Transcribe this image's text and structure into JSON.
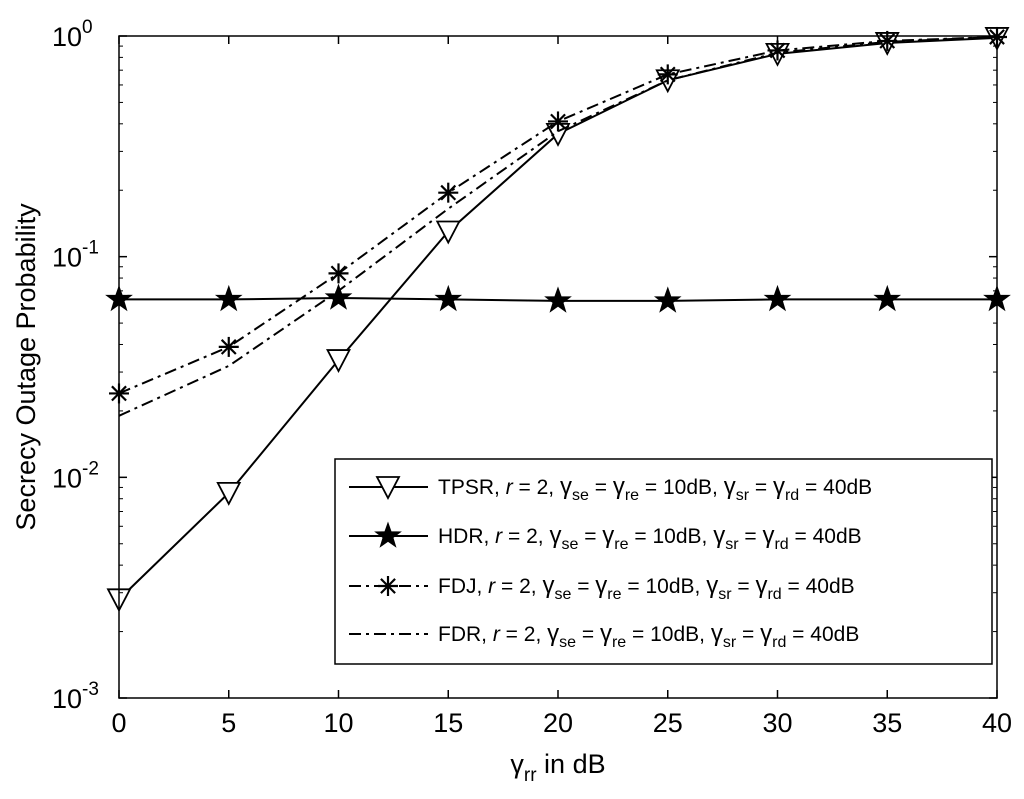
{
  "chart_data": {
    "type": "line",
    "xlabel": {
      "base": "γ",
      "sub": "rr",
      "rest": " in dB"
    },
    "ylabel": "Secrecy Outage Probability",
    "x": [
      0,
      5,
      10,
      15,
      20,
      25,
      30,
      35,
      40
    ],
    "xlim": [
      0,
      40
    ],
    "ylim": [
      0.001,
      1
    ],
    "yscale": "log",
    "xticks": [
      "0",
      "5",
      "10",
      "15",
      "20",
      "25",
      "30",
      "35",
      "40"
    ],
    "yticks": [
      {
        "value": 0.001,
        "base": "10",
        "exp": "-3"
      },
      {
        "value": 0.01,
        "base": "10",
        "exp": "-2"
      },
      {
        "value": 0.1,
        "base": "10",
        "exp": "-1"
      },
      {
        "value": 1,
        "base": "10",
        "exp": "0"
      }
    ],
    "grid": false,
    "legend_position": "bottom-right",
    "series": [
      {
        "name": "TPSR",
        "line": "solid",
        "marker": "triangle-down",
        "color": "#000000",
        "values": [
          0.0028,
          0.0085,
          0.034,
          0.13,
          0.36,
          0.63,
          0.83,
          0.93,
          0.98
        ]
      },
      {
        "name": "HDR",
        "line": "solid",
        "marker": "star-filled",
        "color": "#000000",
        "values": [
          0.064,
          0.064,
          0.065,
          0.064,
          0.063,
          0.063,
          0.064,
          0.064,
          0.064
        ]
      },
      {
        "name": "FDJ",
        "line": "dashdot",
        "marker": "asterisk",
        "color": "#000000",
        "values": [
          0.024,
          0.039,
          0.084,
          0.195,
          0.41,
          0.67,
          0.86,
          0.95,
          0.99
        ]
      },
      {
        "name": "FDR",
        "line": "dashdot",
        "marker": "none",
        "color": "#000000",
        "values": [
          0.019,
          0.032,
          0.07,
          0.165,
          0.37,
          0.63,
          0.84,
          0.94,
          0.99
        ]
      }
    ],
    "legend_labels": {
      "r": "r",
      "eq2": " = 2, ",
      "g": "γ",
      "se": "se",
      "re": "re",
      "sr": "sr",
      "rd": "rd",
      "eq": " = ",
      "v10": " = 10dB,  ",
      "v40": " = 40dB"
    }
  }
}
